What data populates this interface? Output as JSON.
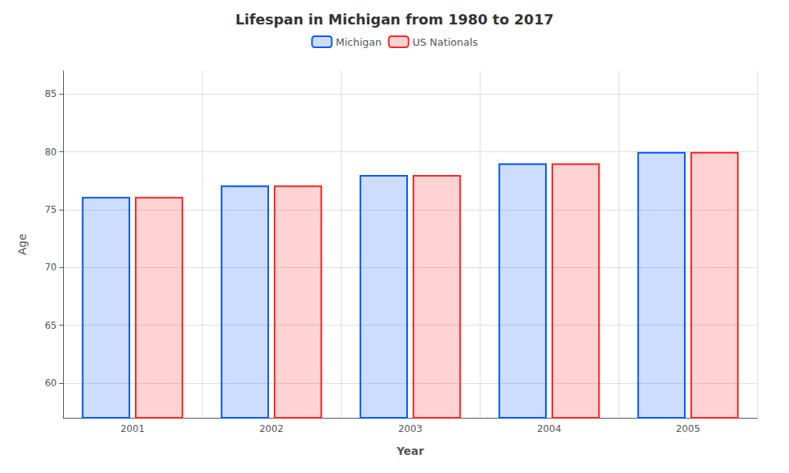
{
  "chart_data": {
    "type": "bar",
    "title": "Lifespan in Michigan from 1980 to 2017",
    "xlabel": "Year",
    "ylabel": "Age",
    "categories": [
      "2001",
      "2002",
      "2003",
      "2004",
      "2005"
    ],
    "series": [
      {
        "name": "Michigan",
        "color": "#0055ff",
        "values": [
          76.1,
          77.1,
          78.0,
          79.0,
          80.0
        ]
      },
      {
        "name": "US Nationals",
        "color": "#ff2222",
        "values": [
          76.1,
          77.1,
          78.0,
          79.0,
          80.0
        ]
      }
    ],
    "ylim": [
      57,
      87
    ],
    "yticks": [
      60,
      65,
      70,
      75,
      80,
      85
    ],
    "grid": true,
    "legend": "top"
  }
}
